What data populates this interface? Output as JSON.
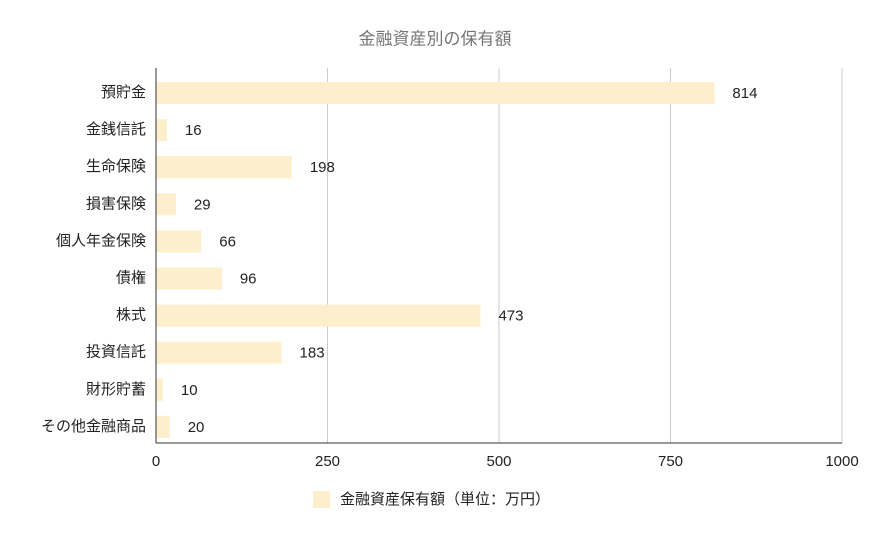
{
  "chart_data": {
    "type": "bar",
    "orientation": "horizontal",
    "title": "金融資産別の保有額",
    "categories": [
      "預貯金",
      "金銭信託",
      "生命保険",
      "損害保険",
      "個人年金保険",
      "債権",
      "株式",
      "投資信託",
      "財形貯蓄",
      "その他金融商品"
    ],
    "series": [
      {
        "name": "金融資産保有額（単位：万円）",
        "color": "#fdefcb",
        "values": [
          814,
          16,
          198,
          29,
          66,
          96,
          473,
          183,
          10,
          20
        ]
      }
    ],
    "xlim": [
      0,
      1000
    ],
    "xticks": [
      0,
      250,
      500,
      750,
      1000
    ],
    "grid": true,
    "legend": "bottom"
  }
}
